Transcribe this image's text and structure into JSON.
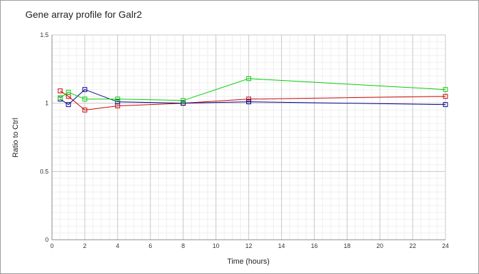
{
  "chart_data": {
    "type": "line",
    "title": "Gene array profile for Galr2",
    "xlabel": "Time (hours)",
    "ylabel": "Ratio to Ctrl",
    "xlim": [
      0,
      24
    ],
    "ylim": [
      0,
      1.5
    ],
    "x_ticks": [
      "0",
      "2",
      "4",
      "6",
      "8",
      "10",
      "12",
      "14",
      "16",
      "18",
      "20",
      "22",
      "24"
    ],
    "y_ticks": [
      "0",
      "0.5",
      "1",
      "1.5"
    ],
    "grid": true,
    "legend": "none",
    "marker": "square",
    "x": [
      0.5,
      1,
      2,
      4,
      8,
      12,
      24
    ],
    "series": [
      {
        "color": "#cc0000",
        "values": [
          1.09,
          1.05,
          0.95,
          0.98,
          1.0,
          1.03,
          1.05
        ]
      },
      {
        "color": "#00008b",
        "values": [
          1.03,
          0.99,
          1.1,
          1.01,
          1.0,
          1.01,
          0.99
        ]
      },
      {
        "color": "#00cc00",
        "values": [
          1.04,
          1.08,
          1.03,
          1.03,
          1.02,
          1.18,
          1.1
        ]
      }
    ]
  }
}
